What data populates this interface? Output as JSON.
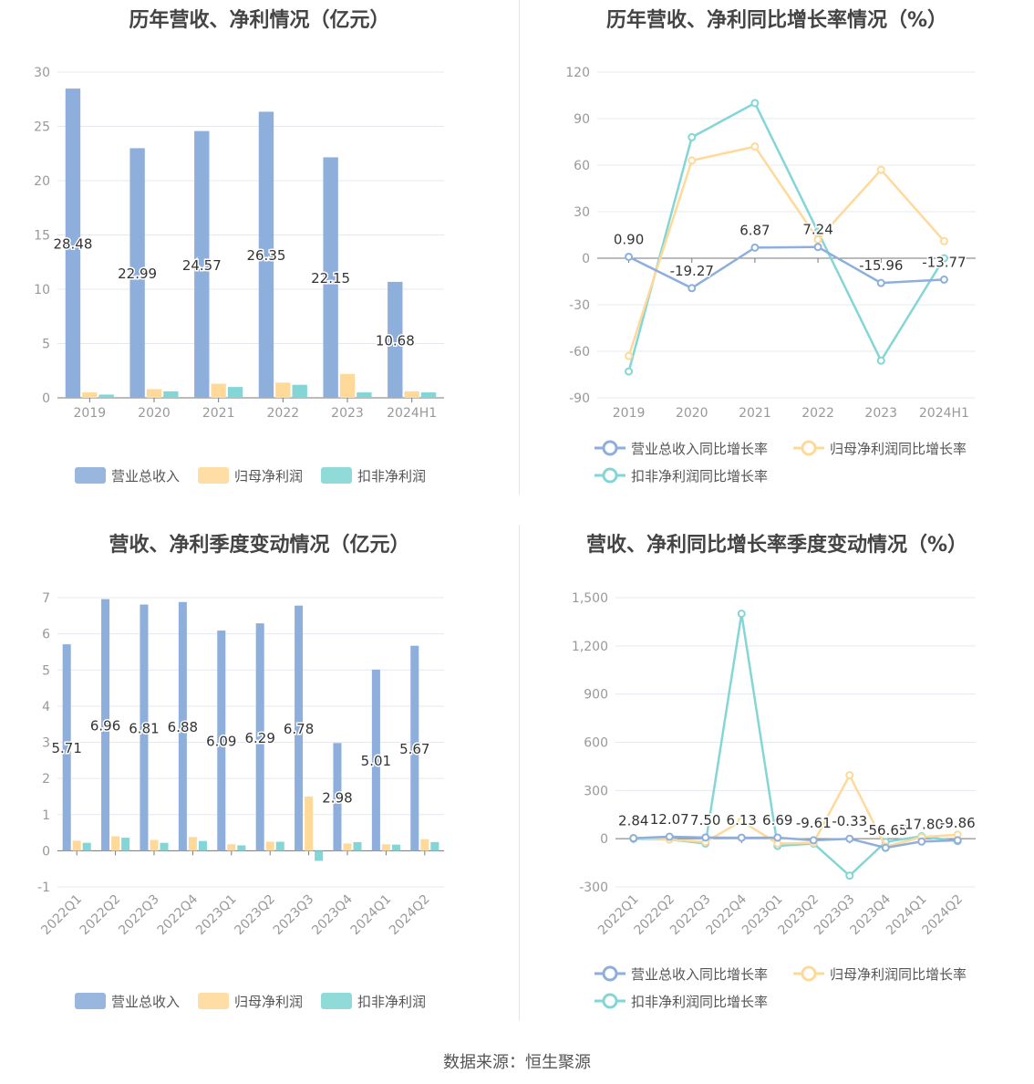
{
  "source_text": "数据来源：恒生聚源",
  "colors": {
    "revenue": "#8eaedc",
    "net_profit": "#ffd99a",
    "deducted_profit": "#84d6d6"
  },
  "chart_data": [
    {
      "type": "bar",
      "title": "历年营收、净利情况（亿元）",
      "categories": [
        "2019",
        "2020",
        "2021",
        "2022",
        "2023",
        "2024H1"
      ],
      "ylim": [
        0,
        30
      ],
      "yticks": [
        0,
        5,
        10,
        15,
        20,
        25,
        30
      ],
      "grid": true,
      "legend_position": "bottom",
      "series": [
        {
          "name": "营业总收入",
          "values": [
            28.48,
            22.99,
            24.57,
            26.35,
            22.15,
            10.68
          ],
          "labels": [
            "28.48",
            "22.99",
            "24.57",
            "26.35",
            "22.15",
            "10.68"
          ]
        },
        {
          "name": "归母净利润",
          "values": [
            0.5,
            0.8,
            1.3,
            1.4,
            2.2,
            0.6
          ]
        },
        {
          "name": "扣非净利润",
          "values": [
            0.3,
            0.6,
            1.0,
            1.2,
            0.5,
            0.5
          ]
        }
      ]
    },
    {
      "type": "line",
      "title": "历年营收、净利同比增长率情况（%）",
      "categories": [
        "2019",
        "2020",
        "2021",
        "2022",
        "2023",
        "2024H1"
      ],
      "ylim": [
        -90,
        120
      ],
      "yticks": [
        -90,
        -60,
        -30,
        0,
        30,
        60,
        90,
        120
      ],
      "grid": true,
      "legend_position": "bottom",
      "series": [
        {
          "name": "营业总收入同比增长率",
          "values": [
            0.9,
            -19.27,
            6.87,
            7.24,
            -15.96,
            -13.77
          ],
          "labels": [
            "0.90",
            "-19.27",
            "6.87",
            "7.24",
            "-15.96",
            "-13.77"
          ]
        },
        {
          "name": "归母净利润同比增长率",
          "values": [
            -63,
            63,
            72,
            12,
            57,
            11
          ]
        },
        {
          "name": "扣非净利润同比增长率",
          "values": [
            -73,
            78,
            100,
            17,
            -66,
            0
          ]
        }
      ]
    },
    {
      "type": "bar",
      "title": "营收、净利季度变动情况（亿元）",
      "categories": [
        "2022Q1",
        "2022Q2",
        "2022Q3",
        "2022Q4",
        "2023Q1",
        "2023Q2",
        "2023Q3",
        "2023Q4",
        "2024Q1",
        "2024Q2"
      ],
      "ylim": [
        -1,
        7
      ],
      "yticks": [
        -1,
        0,
        1,
        2,
        3,
        4,
        5,
        6,
        7
      ],
      "grid": true,
      "legend_position": "bottom",
      "series": [
        {
          "name": "营业总收入",
          "values": [
            5.71,
            6.96,
            6.81,
            6.88,
            6.09,
            6.29,
            6.78,
            2.98,
            5.01,
            5.67
          ],
          "labels": [
            "5.71",
            "6.96",
            "6.81",
            "6.88",
            "6.09",
            "6.29",
            "6.78",
            "2.98",
            "5.01",
            "5.67"
          ]
        },
        {
          "name": "归母净利润",
          "values": [
            0.28,
            0.4,
            0.3,
            0.38,
            0.18,
            0.25,
            1.5,
            0.2,
            0.18,
            0.32
          ]
        },
        {
          "name": "扣非净利润",
          "values": [
            0.22,
            0.36,
            0.22,
            0.27,
            0.15,
            0.25,
            -0.28,
            0.24,
            0.17,
            0.24
          ]
        }
      ]
    },
    {
      "type": "line",
      "title": "营收、净利同比增长率季度变动情况（%）",
      "categories": [
        "2022Q1",
        "2022Q2",
        "2022Q3",
        "2022Q4",
        "2023Q1",
        "2023Q2",
        "2023Q3",
        "2023Q4",
        "2024Q1",
        "2024Q2"
      ],
      "ylim": [
        -300,
        1500
      ],
      "yticks": [
        -300,
        0,
        300,
        600,
        900,
        1200,
        1500
      ],
      "ytick_labels": [
        "-300",
        "0",
        "300",
        "600",
        "900",
        "1,200",
        "1,500"
      ],
      "grid": true,
      "legend_position": "bottom",
      "series": [
        {
          "name": "营业总收入同比增长率",
          "values": [
            2.84,
            12.07,
            7.5,
            6.13,
            6.69,
            -9.61,
            -0.33,
            -56.65,
            -17.8,
            -9.86
          ],
          "labels": [
            "2.84",
            "12.07",
            "7.50",
            "6.13",
            "6.69",
            "-9.61",
            "-0.33",
            "-56.65",
            "-17.80",
            "-9.86"
          ]
        },
        {
          "name": "归母净利润同比增长率",
          "values": [
            5,
            -5,
            -20,
            110,
            -30,
            -25,
            395,
            -50,
            10,
            25
          ]
        },
        {
          "name": "扣非净利润同比增长率",
          "values": [
            0,
            -5,
            -30,
            1400,
            -45,
            -30,
            -230,
            -20,
            15,
            -15
          ]
        }
      ]
    }
  ]
}
